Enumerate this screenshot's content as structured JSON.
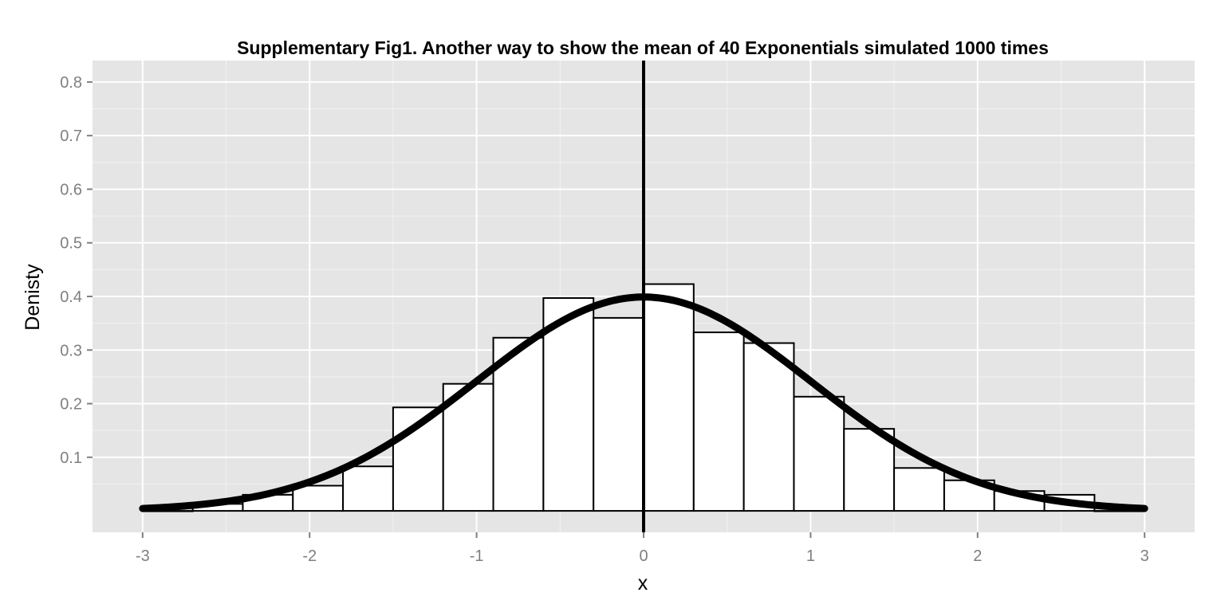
{
  "chart_data": {
    "type": "bar",
    "title": "Supplementary Fig1. Another way to show the mean of 40 Exponentials simulated 1000 times",
    "xlabel": "x",
    "ylabel": "Denisty",
    "xlim": [
      -3.3,
      3.3
    ],
    "ylim": [
      -0.04,
      0.84
    ],
    "x_ticks": [
      -3,
      -2,
      -1,
      0,
      1,
      2,
      3
    ],
    "x_tick_labels": [
      "-3",
      "-2",
      "-1",
      "0",
      "1",
      "2",
      "3"
    ],
    "y_ticks": [
      0.1,
      0.2,
      0.3,
      0.4,
      0.5,
      0.6,
      0.7,
      0.8
    ],
    "y_tick_labels": [
      "0.1",
      "0.2",
      "0.3",
      "0.4",
      "0.5",
      "0.6",
      "0.7",
      "0.8"
    ],
    "grid": true,
    "bin_width": 0.3,
    "histogram": [
      {
        "x0": -3.0,
        "x1": -2.7,
        "density": 0.0
      },
      {
        "x0": -2.7,
        "x1": -2.4,
        "density": 0.013
      },
      {
        "x0": -2.4,
        "x1": -2.1,
        "density": 0.03
      },
      {
        "x0": -2.1,
        "x1": -1.8,
        "density": 0.047
      },
      {
        "x0": -1.8,
        "x1": -1.5,
        "density": 0.083
      },
      {
        "x0": -1.5,
        "x1": -1.2,
        "density": 0.193
      },
      {
        "x0": -1.2,
        "x1": -0.9,
        "density": 0.237
      },
      {
        "x0": -0.9,
        "x1": -0.6,
        "density": 0.323
      },
      {
        "x0": -0.6,
        "x1": -0.3,
        "density": 0.397
      },
      {
        "x0": -0.3,
        "x1": 0.0,
        "density": 0.36
      },
      {
        "x0": 0.0,
        "x1": 0.3,
        "density": 0.423
      },
      {
        "x0": 0.3,
        "x1": 0.6,
        "density": 0.333
      },
      {
        "x0": 0.6,
        "x1": 0.9,
        "density": 0.313
      },
      {
        "x0": 0.9,
        "x1": 1.2,
        "density": 0.213
      },
      {
        "x0": 1.2,
        "x1": 1.5,
        "density": 0.153
      },
      {
        "x0": 1.5,
        "x1": 1.8,
        "density": 0.08
      },
      {
        "x0": 1.8,
        "x1": 2.1,
        "density": 0.057
      },
      {
        "x0": 2.1,
        "x1": 2.4,
        "density": 0.037
      },
      {
        "x0": 2.4,
        "x1": 2.7,
        "density": 0.03
      },
      {
        "x0": 2.7,
        "x1": 3.0,
        "density": 0.0
      }
    ],
    "curve": {
      "type": "normal-density",
      "mean": 0,
      "sd": 1,
      "x_range": [
        -3,
        3
      ]
    },
    "vline": {
      "x": 0
    },
    "colors": {
      "panel": "#e5e5e5",
      "grid_major": "#ffffff",
      "grid_minor": "#f2f2f2",
      "bar_fill": "#ffffff",
      "bar_stroke": "#000000",
      "curve": "#000000",
      "vline": "#000000"
    }
  }
}
